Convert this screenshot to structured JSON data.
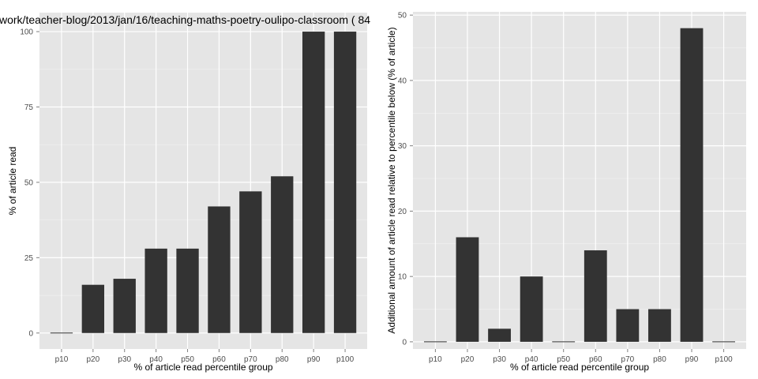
{
  "chart_data": [
    {
      "type": "bar",
      "title": "work/teacher-blog/2013/jan/16/teaching-maths-poetry-oulipo-classroom ( 84",
      "xlabel": "% of article read percentile group",
      "ylabel": "% of article read",
      "categories": [
        "p10",
        "p20",
        "p30",
        "p40",
        "p50",
        "p60",
        "p70",
        "p80",
        "p90",
        "p100"
      ],
      "values": [
        0,
        16,
        18,
        28,
        28,
        42,
        47,
        52,
        100,
        100
      ],
      "yticks": [
        "0",
        "25",
        "50",
        "75",
        "100"
      ],
      "ylim": [
        -5.3,
        106.3
      ],
      "grid": true,
      "bar_color": "#333333",
      "panel_background": "#e5e5e5",
      "gridline_color": "#ffffff"
    },
    {
      "type": "bar",
      "title": "",
      "xlabel": "% of article read percentile group",
      "ylabel": "Additional amount of article read relative to percentile below (% of article)",
      "categories": [
        "p10",
        "p20",
        "p30",
        "p40",
        "p50",
        "p60",
        "p70",
        "p80",
        "p90",
        "p100"
      ],
      "values": [
        0,
        16,
        2,
        10,
        0,
        14,
        5,
        5,
        48,
        0
      ],
      "yticks": [
        "0",
        "10",
        "20",
        "30",
        "40",
        "50"
      ],
      "ylim": [
        -1.1,
        50.5
      ],
      "grid": true,
      "bar_color": "#333333",
      "panel_background": "#e5e5e5",
      "gridline_color": "#ffffff"
    }
  ]
}
